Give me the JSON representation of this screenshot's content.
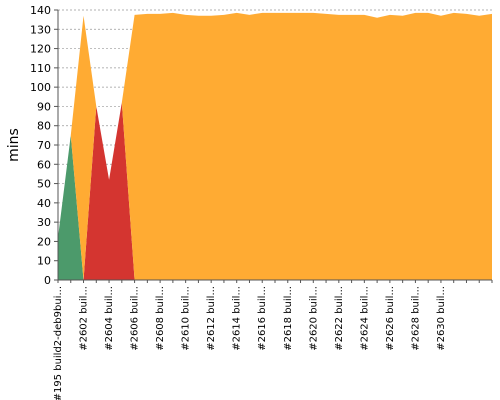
{
  "chart_data": {
    "type": "area",
    "title": "",
    "xlabel": "",
    "ylabel": "mins",
    "ylim": [
      0,
      140
    ],
    "ytick_step": 10,
    "grid": true,
    "colors": {
      "success": "#4c9a6b",
      "unstable": "#ffab33",
      "failure": "#d43530"
    },
    "tick_labels": [
      "#195 build2-deb9bui...",
      "#2602 buil...",
      "#2604 buil...",
      "#2606 buil...",
      "#2608 buil...",
      "#2610 buil...",
      "#2612 buil...",
      "#2614 buil...",
      "#2616 buil...",
      "#2618 buil...",
      "#2620 buil...",
      "#2622 buil...",
      "#2624 buil...",
      "#2626 buil...",
      "#2628 buil...",
      "#2630 buil..."
    ],
    "points": [
      {
        "x": 0,
        "failure": 0,
        "unstable": 0,
        "success": 22
      },
      {
        "x": 1,
        "failure": 0,
        "unstable": 0,
        "success": 75
      },
      {
        "x": 2,
        "failure": 0,
        "unstable": 137,
        "success": 0
      },
      {
        "x": 3,
        "failure": 90,
        "unstable": 0,
        "success": 0
      },
      {
        "x": 4,
        "failure": 52,
        "unstable": 0,
        "success": 0
      },
      {
        "x": 5,
        "failure": 92,
        "unstable": 0,
        "success": 0
      },
      {
        "x": 6,
        "failure": 0,
        "unstable": 137.5,
        "success": 0
      },
      {
        "x": 7,
        "failure": 0,
        "unstable": 138,
        "success": 0
      },
      {
        "x": 8,
        "failure": 0,
        "unstable": 138,
        "success": 0
      },
      {
        "x": 9,
        "failure": 0,
        "unstable": 138.5,
        "success": 0
      },
      {
        "x": 10,
        "failure": 0,
        "unstable": 137.5,
        "success": 0
      },
      {
        "x": 11,
        "failure": 0,
        "unstable": 137,
        "success": 0
      },
      {
        "x": 12,
        "failure": 0,
        "unstable": 137,
        "success": 0
      },
      {
        "x": 13,
        "failure": 0,
        "unstable": 137.5,
        "success": 0
      },
      {
        "x": 14,
        "failure": 0,
        "unstable": 138.5,
        "success": 0
      },
      {
        "x": 15,
        "failure": 0,
        "unstable": 137.5,
        "success": 0
      },
      {
        "x": 16,
        "failure": 0,
        "unstable": 138.5,
        "success": 0
      },
      {
        "x": 17,
        "failure": 0,
        "unstable": 138.5,
        "success": 0
      },
      {
        "x": 18,
        "failure": 0,
        "unstable": 138.5,
        "success": 0
      },
      {
        "x": 19,
        "failure": 0,
        "unstable": 138.5,
        "success": 0
      },
      {
        "x": 20,
        "failure": 0,
        "unstable": 138.5,
        "success": 0
      },
      {
        "x": 21,
        "failure": 0,
        "unstable": 138,
        "success": 0
      },
      {
        "x": 22,
        "failure": 0,
        "unstable": 137.5,
        "success": 0
      },
      {
        "x": 23,
        "failure": 0,
        "unstable": 137.5,
        "success": 0
      },
      {
        "x": 24,
        "failure": 0,
        "unstable": 137.5,
        "success": 0
      },
      {
        "x": 25,
        "failure": 0,
        "unstable": 136,
        "success": 0
      },
      {
        "x": 26,
        "failure": 0,
        "unstable": 137.5,
        "success": 0
      },
      {
        "x": 27,
        "failure": 0,
        "unstable": 137,
        "success": 0
      },
      {
        "x": 28,
        "failure": 0,
        "unstable": 138.5,
        "success": 0
      },
      {
        "x": 29,
        "failure": 0,
        "unstable": 138.5,
        "success": 0
      },
      {
        "x": 30,
        "failure": 0,
        "unstable": 137,
        "success": 0
      },
      {
        "x": 31,
        "failure": 0,
        "unstable": 138.5,
        "success": 0
      },
      {
        "x": 32,
        "failure": 0,
        "unstable": 138,
        "success": 0
      },
      {
        "x": 33,
        "failure": 0,
        "unstable": 137,
        "success": 0
      },
      {
        "x": 34,
        "failure": 0,
        "unstable": 138,
        "success": 0
      }
    ],
    "label_every": 2
  }
}
